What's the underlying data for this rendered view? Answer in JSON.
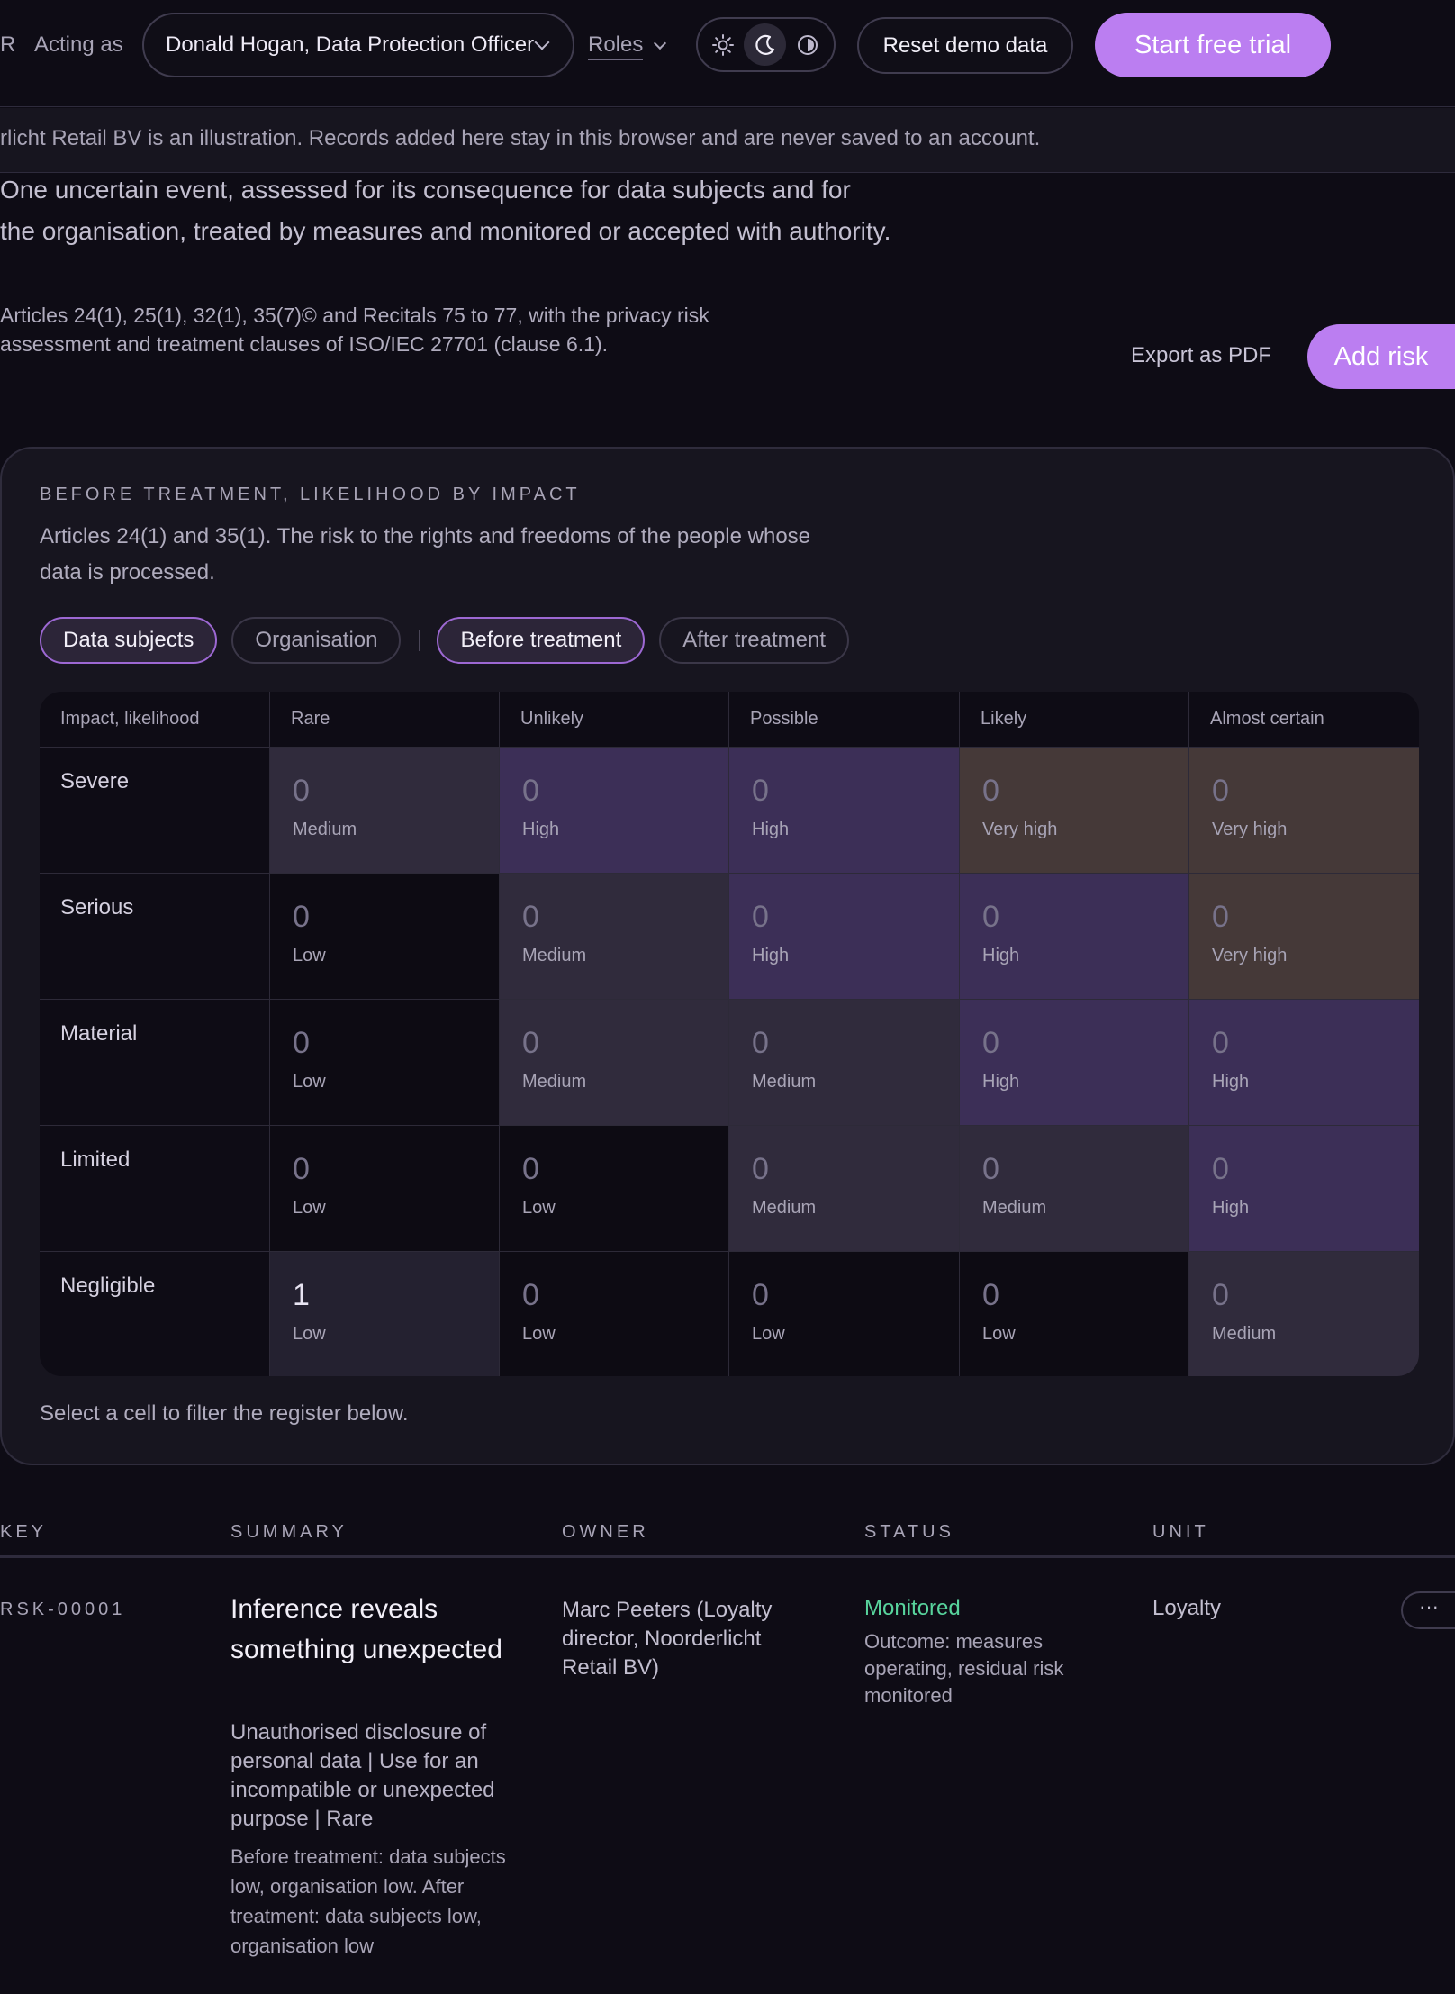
{
  "topbar": {
    "cut_label": "R",
    "acting_as_label": "Acting as",
    "persona_value": "Donald Hogan, Data Protection Officer",
    "roles_label": "Roles",
    "theme_options": [
      "sun-icon",
      "moon-icon",
      "contrast-icon"
    ],
    "theme_active": "moon-icon",
    "reset_label": "Reset demo data",
    "trial_label": "Start free trial"
  },
  "notice": "rlicht Retail BV is an illustration. Records added here stay in this browser and are never saved to an account.",
  "intro": {
    "lead": "One uncertain event, assessed for its consequence for data subjects and for the organisation, treated by measures and monitored or accepted with authority.",
    "references": "Articles 24(1), 25(1), 32(1), 35(7)© and Recitals 75 to 77, with the privacy risk assessment and treatment clauses of ISO/IEC 27701 (clause 6.1).",
    "export_label": "Export as PDF",
    "add_label": "Add risk"
  },
  "matrix": {
    "eyebrow": "BEFORE TREATMENT, LIKELIHOOD BY IMPACT",
    "description": "Articles 24(1) and 35(1). The risk to the rights and freedoms of the people whose data is processed.",
    "perspective_chips": [
      "Data subjects",
      "Organisation"
    ],
    "perspective_active": 0,
    "stage_chips": [
      "Before treatment",
      "After treatment"
    ],
    "stage_active": 0,
    "corner_label": "Impact, likelihood",
    "likelihoods": [
      "Rare",
      "Unlikely",
      "Possible",
      "Likely",
      "Almost certain"
    ],
    "rows": [
      {
        "impact": "Severe",
        "cells": [
          {
            "count": "0",
            "level": "Medium",
            "lv": "medium"
          },
          {
            "count": "0",
            "level": "High",
            "lv": "high"
          },
          {
            "count": "0",
            "level": "High",
            "lv": "high"
          },
          {
            "count": "0",
            "level": "Very high",
            "lv": "veryhigh"
          },
          {
            "count": "0",
            "level": "Very high",
            "lv": "veryhigh"
          }
        ]
      },
      {
        "impact": "Serious",
        "cells": [
          {
            "count": "0",
            "level": "Low",
            "lv": "low"
          },
          {
            "count": "0",
            "level": "Medium",
            "lv": "medium"
          },
          {
            "count": "0",
            "level": "High",
            "lv": "high"
          },
          {
            "count": "0",
            "level": "High",
            "lv": "high"
          },
          {
            "count": "0",
            "level": "Very high",
            "lv": "veryhigh"
          }
        ]
      },
      {
        "impact": "Material",
        "cells": [
          {
            "count": "0",
            "level": "Low",
            "lv": "low"
          },
          {
            "count": "0",
            "level": "Medium",
            "lv": "medium"
          },
          {
            "count": "0",
            "level": "Medium",
            "lv": "medium"
          },
          {
            "count": "0",
            "level": "High",
            "lv": "high"
          },
          {
            "count": "0",
            "level": "High",
            "lv": "high"
          }
        ]
      },
      {
        "impact": "Limited",
        "cells": [
          {
            "count": "0",
            "level": "Low",
            "lv": "low"
          },
          {
            "count": "0",
            "level": "Low",
            "lv": "low"
          },
          {
            "count": "0",
            "level": "Medium",
            "lv": "medium"
          },
          {
            "count": "0",
            "level": "Medium",
            "lv": "medium"
          },
          {
            "count": "0",
            "level": "High",
            "lv": "high"
          }
        ]
      },
      {
        "impact": "Negligible",
        "cells": [
          {
            "count": "1",
            "level": "Low",
            "lv": "low"
          },
          {
            "count": "0",
            "level": "Low",
            "lv": "low"
          },
          {
            "count": "0",
            "level": "Low",
            "lv": "low"
          },
          {
            "count": "0",
            "level": "Low",
            "lv": "low"
          },
          {
            "count": "0",
            "level": "Medium",
            "lv": "medium"
          }
        ]
      }
    ],
    "footer": "Select a cell to filter the register below."
  },
  "register": {
    "columns": [
      "KEY",
      "SUMMARY",
      "OWNER",
      "STATUS",
      "UNIT"
    ],
    "rows": [
      {
        "key": "RSK-00001",
        "title": "Inference reveals something unexpected",
        "categories": "Unauthorised disclosure of personal data | Use for an incompatible or unexpected purpose | Rare",
        "note": "Before treatment: data subjects low, organisation low. After treatment: data subjects low, organisation low",
        "owner": "Marc Peeters (Loyalty director, Noorderlicht Retail BV)",
        "status": "Monitored",
        "outcome": "Outcome: measures operating, residual risk monitored",
        "unit": "Loyalty",
        "menu": "···"
      }
    ]
  },
  "colors": {
    "accent": "#bb7ef1",
    "status_monitored": "#58d49d",
    "level_low": "#0d0b13",
    "level_medium": "#302b3c",
    "level_high": "#3c2f57",
    "level_veryhigh": "#453938"
  }
}
